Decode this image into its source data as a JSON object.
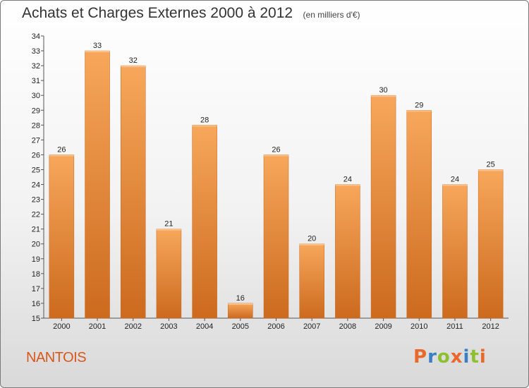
{
  "header": {
    "title": "Achats et Charges Externes 2000 à 2012",
    "unit": "(en milliers d'€)"
  },
  "footer": {
    "commune": "NANTOIS",
    "logo_text": "Proxiti",
    "logo_colors": [
      "#e8692a",
      "#3a7fc4",
      "#8dbf2f",
      "#e8692a",
      "#3a7fc4",
      "#8dbf2f",
      "#e8692a"
    ]
  },
  "colors": {
    "bar_top": "#f7a75b",
    "bar_bottom": "#cc6a1e",
    "title": "#333333",
    "commune": "#d9571c"
  },
  "chart_data": {
    "type": "bar",
    "title": "Achats et Charges Externes 2000 à 2012",
    "subtitle": "(en milliers d'€)",
    "categories": [
      "2000",
      "2001",
      "2002",
      "2003",
      "2004",
      "2005",
      "2006",
      "2007",
      "2008",
      "2009",
      "2010",
      "2011",
      "2012"
    ],
    "values": [
      26,
      33,
      32,
      21,
      28,
      16,
      26,
      20,
      24,
      30,
      29,
      24,
      25
    ],
    "ylim": [
      15,
      34
    ],
    "yticks": [
      15,
      16,
      17,
      18,
      19,
      20,
      21,
      22,
      23,
      24,
      25,
      26,
      27,
      28,
      29,
      30,
      31,
      32,
      33,
      34
    ],
    "xlabel": "",
    "ylabel": "",
    "grid": false,
    "data_labels": true
  }
}
